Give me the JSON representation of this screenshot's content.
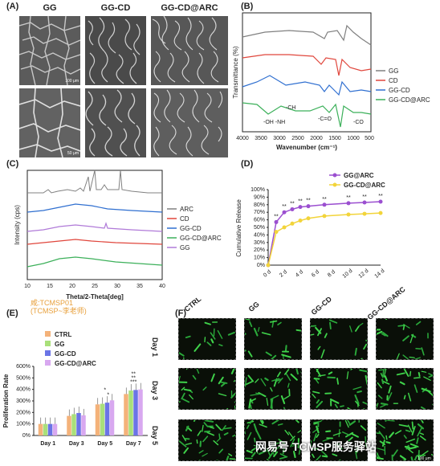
{
  "panels": {
    "A": "(A)",
    "B": "(B)",
    "C": "(C)",
    "D": "(D)",
    "E": "(E)",
    "F": "(F)"
  },
  "sem": {
    "columns": [
      "GG",
      "GG-CD",
      "GG-CD@ARC"
    ],
    "scale_top": "100 μm",
    "scale_bottom": "50 μm"
  },
  "watermark": {
    "line1": "咸:TCMSP01",
    "line2": "(TCMSP~李老师)",
    "bottom": "网易号 TCMSP服务驿站"
  },
  "fluorescence": {
    "columns": [
      "CTRL",
      "GG",
      "GG-CD",
      "GG-CD@ARC"
    ],
    "rows": [
      "Day 1",
      "Day 3",
      "Day 5"
    ],
    "scale": "100 μm"
  },
  "colors": {
    "GG": "#808080",
    "CD": "#e0463c",
    "GG-CD": "#2f6fd0",
    "GG-CD@ARC": "#3cb05a",
    "ARC": "#808080",
    "GG-CD@ARC_C": "#3cb05a",
    "GG_C": "#b07ad8",
    "D_GG@ARC": "#9b4fd0",
    "D_GG-CD@ARC": "#f2d43a",
    "E_CTRL": "#f4b27a",
    "E_GG": "#a9e07a",
    "E_GG-CD": "#6b74e6",
    "E_GG-CD@ARC": "#d8a8f0"
  },
  "chart_data": [
    {
      "panel": "B",
      "type": "line",
      "xlabel": "Wavenumber (cm⁻¹)",
      "ylabel": "Transmittance (%)",
      "x_ticks": [
        "4000",
        "3500",
        "3000",
        "2500",
        "2000",
        "1500",
        "1000",
        "500"
      ],
      "xlim": [
        4000,
        500
      ],
      "series": [
        {
          "name": "GG"
        },
        {
          "name": "CD"
        },
        {
          "name": "GG-CD"
        },
        {
          "name": "GG-CD@ARC"
        }
      ],
      "annotations": [
        "-OH -NH",
        "-CH",
        "-C=O",
        "-CO"
      ]
    },
    {
      "panel": "C",
      "type": "line",
      "xlabel": "Theta/2-Theta[deg]",
      "ylabel": "Intensity (cps)",
      "x_ticks": [
        "10",
        "15",
        "20",
        "25",
        "30",
        "35",
        "40"
      ],
      "xlim": [
        10,
        40
      ],
      "series": [
        {
          "name": "ARC"
        },
        {
          "name": "CD"
        },
        {
          "name": "GG-CD"
        },
        {
          "name": "GG-CD@ARC"
        },
        {
          "name": "GG"
        }
      ]
    },
    {
      "panel": "D",
      "type": "line",
      "xlabel": "",
      "ylabel": "Cumulative Release",
      "x": [
        "0 d",
        "2 d",
        "4 d",
        "6 d",
        "8 d",
        "10 d",
        "12 d",
        "14 d"
      ],
      "x_values": [
        0,
        1,
        2,
        3,
        4,
        5,
        7,
        10,
        12,
        14
      ],
      "y_ticks": [
        "0%",
        "10%",
        "20%",
        "30%",
        "40%",
        "50%",
        "60%",
        "70%",
        "80%",
        "90%",
        "100%"
      ],
      "ylim": [
        0,
        100
      ],
      "series": [
        {
          "name": "GG@ARC",
          "values": [
            0,
            57,
            70,
            74,
            77,
            78,
            80,
            82,
            83,
            84
          ]
        },
        {
          "name": "GG-CD@ARC",
          "values": [
            0,
            44,
            50,
            55,
            59,
            62,
            65,
            67,
            68,
            69
          ]
        }
      ],
      "significance": "**"
    },
    {
      "panel": "E",
      "type": "bar",
      "ylabel": "Proliferation Rate",
      "categories": [
        "Day 1",
        "Day 3",
        "Day 5",
        "Day 7"
      ],
      "y_ticks": [
        "0%",
        "100%",
        "200%",
        "300%",
        "400%",
        "500%",
        "600%"
      ],
      "ylim": [
        0,
        600
      ],
      "series": [
        {
          "name": "CTRL",
          "values": [
            100,
            170,
            270,
            360
          ]
        },
        {
          "name": "GG",
          "values": [
            100,
            185,
            275,
            390
          ]
        },
        {
          "name": "GG-CD",
          "values": [
            100,
            195,
            285,
            395
          ]
        },
        {
          "name": "GG-CD@ARC",
          "values": [
            100,
            175,
            305,
            400
          ]
        }
      ],
      "significance": [
        "*",
        "*",
        "**",
        "**",
        "***"
      ]
    }
  ]
}
